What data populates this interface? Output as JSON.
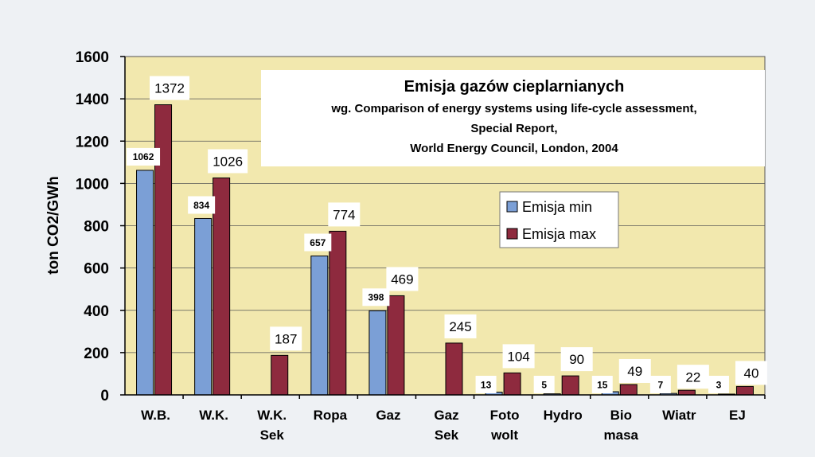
{
  "chart_data": {
    "type": "bar",
    "title": "Emisja gazów cieplarnianych",
    "subtitle": [
      "wg. Comparison of energy systems using life-cycle assessment,",
      "Special Report,",
      "World Energy Council, London, 2004"
    ],
    "ylabel": "ton CO2/GWh",
    "xlabel": "",
    "ylim": [
      0,
      1600
    ],
    "yticks": [
      0,
      200,
      400,
      600,
      800,
      1000,
      1200,
      1400,
      1600
    ],
    "grid": true,
    "legend_position": "right",
    "categories": [
      [
        "W.B."
      ],
      [
        "W.K."
      ],
      [
        "W.K.",
        "Sek"
      ],
      [
        "Ropa"
      ],
      [
        "Gaz"
      ],
      [
        "Gaz",
        "Sek"
      ],
      [
        "Foto",
        "wolt"
      ],
      [
        "Hydro"
      ],
      [
        "Bio",
        "masa"
      ],
      [
        "Wiatr"
      ],
      [
        "EJ"
      ]
    ],
    "series": [
      {
        "name": "Emisja min",
        "color": "#7b9fd6",
        "values": [
          1062,
          834,
          null,
          657,
          398,
          null,
          13,
          5,
          15,
          7,
          3
        ]
      },
      {
        "name": "Emisja max",
        "color": "#8e2a3e",
        "values": [
          1372,
          1026,
          187,
          774,
          469,
          245,
          104,
          90,
          49,
          22,
          40
        ]
      }
    ],
    "plot_background": "#f2e8ae"
  }
}
